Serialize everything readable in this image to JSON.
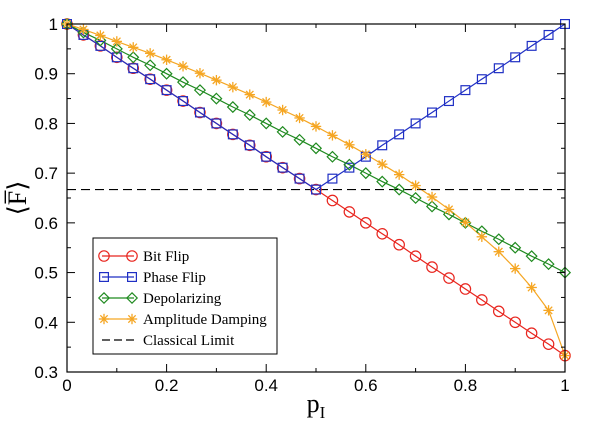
{
  "chart_data": {
    "type": "line",
    "title": "",
    "xlabel": "p",
    "xlabel_subscript": "I",
    "ylabel": "⟨F̅⟩",
    "xlim": [
      0,
      1
    ],
    "ylim": [
      0.3,
      1.0
    ],
    "xticks": [
      0,
      0.2,
      0.4,
      0.6,
      0.8,
      1
    ],
    "xtick_labels": [
      "0",
      "0.2",
      "0.4",
      "0.6",
      "0.8",
      "1"
    ],
    "yticks": [
      0.3,
      0.4,
      0.5,
      0.6,
      0.7,
      0.8,
      0.9,
      1.0
    ],
    "ytick_labels": [
      "0.3",
      "0.4",
      "0.5",
      "0.6",
      "0.7",
      "0.8",
      "0.9",
      "1"
    ],
    "grid": false,
    "legend_position": "bottom-left",
    "x": [
      0,
      0.033,
      0.067,
      0.1,
      0.133,
      0.167,
      0.2,
      0.233,
      0.267,
      0.3,
      0.333,
      0.367,
      0.4,
      0.433,
      0.467,
      0.5,
      0.533,
      0.567,
      0.6,
      0.633,
      0.667,
      0.7,
      0.733,
      0.767,
      0.8,
      0.833,
      0.867,
      0.9,
      0.933,
      0.967,
      1
    ],
    "series": [
      {
        "name": "Bit Flip",
        "color": "#e8251e",
        "marker": "circle",
        "values": [
          1.0,
          0.978,
          0.956,
          0.933,
          0.911,
          0.889,
          0.867,
          0.845,
          0.822,
          0.8,
          0.778,
          0.756,
          0.733,
          0.711,
          0.689,
          0.667,
          0.645,
          0.622,
          0.6,
          0.578,
          0.556,
          0.533,
          0.511,
          0.489,
          0.467,
          0.445,
          0.422,
          0.4,
          0.378,
          0.356,
          0.333
        ]
      },
      {
        "name": "Phase Flip",
        "color": "#1f2fc4",
        "marker": "square",
        "values": [
          1.0,
          0.978,
          0.956,
          0.933,
          0.911,
          0.889,
          0.867,
          0.845,
          0.822,
          0.8,
          0.778,
          0.756,
          0.733,
          0.711,
          0.689,
          0.667,
          0.689,
          0.711,
          0.733,
          0.756,
          0.778,
          0.8,
          0.822,
          0.845,
          0.867,
          0.889,
          0.911,
          0.933,
          0.956,
          0.978,
          1.0
        ]
      },
      {
        "name": "Depolarizing",
        "color": "#1f8a1f",
        "marker": "diamond",
        "values": [
          1.0,
          0.983,
          0.967,
          0.95,
          0.933,
          0.917,
          0.9,
          0.883,
          0.867,
          0.85,
          0.833,
          0.817,
          0.8,
          0.783,
          0.767,
          0.75,
          0.733,
          0.717,
          0.7,
          0.683,
          0.667,
          0.65,
          0.633,
          0.617,
          0.6,
          0.583,
          0.567,
          0.55,
          0.533,
          0.517,
          0.5
        ]
      },
      {
        "name": "Amplitude Damping",
        "color": "#f5a623",
        "marker": "asterisk",
        "values": [
          1.0,
          0.989,
          0.977,
          0.965,
          0.953,
          0.941,
          0.928,
          0.915,
          0.901,
          0.887,
          0.873,
          0.858,
          0.843,
          0.827,
          0.811,
          0.794,
          0.776,
          0.757,
          0.738,
          0.718,
          0.697,
          0.675,
          0.652,
          0.627,
          0.601,
          0.572,
          0.542,
          0.508,
          0.47,
          0.424,
          0.333
        ]
      },
      {
        "name": "Classical Limit",
        "color": "#000000",
        "marker": "none",
        "dashed": true,
        "constant": 0.667
      }
    ]
  }
}
